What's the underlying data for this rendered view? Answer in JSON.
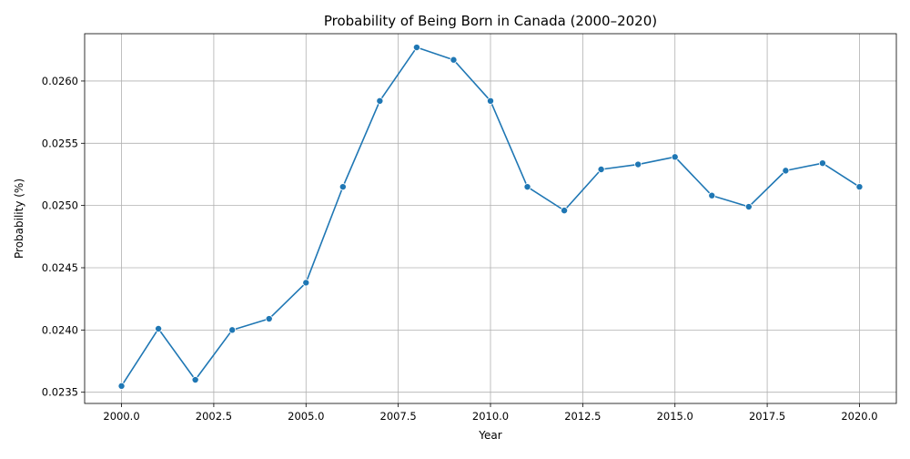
{
  "chart_data": {
    "type": "line",
    "title": "Probability of Being Born in Canada (2000–2020)",
    "xlabel": "Year",
    "ylabel": "Probability (%)",
    "xlim": [
      1999.0,
      2021.0
    ],
    "ylim": [
      0.02341,
      0.02638
    ],
    "x_ticks": [
      2000.0,
      2002.5,
      2005.0,
      2007.5,
      2010.0,
      2012.5,
      2015.0,
      2017.5,
      2020.0
    ],
    "x_tick_labels": [
      "2000.0",
      "2002.5",
      "2005.0",
      "2007.5",
      "2010.0",
      "2012.5",
      "2015.0",
      "2017.5",
      "2020.0"
    ],
    "y_ticks": [
      0.0235,
      0.024,
      0.0245,
      0.025,
      0.0255,
      0.026
    ],
    "y_tick_labels": [
      "0.0235",
      "0.0240",
      "0.0245",
      "0.0250",
      "0.0255",
      "0.0260"
    ],
    "grid": true,
    "color": "#1f77b4",
    "marker": "circle",
    "series": [
      {
        "x": [
          2000,
          2001,
          2002,
          2003,
          2004,
          2005,
          2006,
          2007,
          2008,
          2009,
          2010,
          2011,
          2012,
          2013,
          2014,
          2015,
          2016,
          2017,
          2018,
          2019,
          2020
        ],
        "values": [
          0.02355,
          0.02401,
          0.0236,
          0.024,
          0.02409,
          0.02438,
          0.02515,
          0.02584,
          0.02627,
          0.02617,
          0.02584,
          0.02515,
          0.02496,
          0.02529,
          0.02533,
          0.02539,
          0.02508,
          0.02499,
          0.02528,
          0.02534,
          0.02515
        ]
      }
    ]
  }
}
